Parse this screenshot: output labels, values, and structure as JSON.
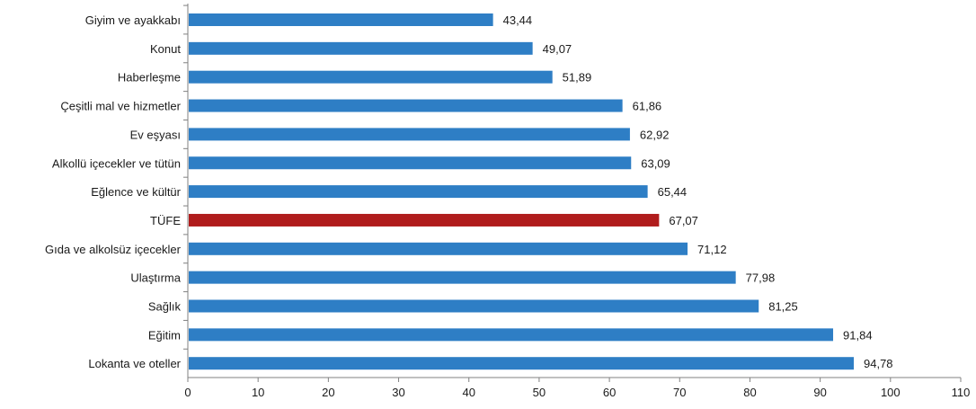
{
  "chart_data": {
    "type": "bar",
    "orientation": "horizontal",
    "title": "",
    "xlabel": "",
    "ylabel": "",
    "xlim": [
      0,
      110
    ],
    "ticks": [
      0,
      10,
      20,
      30,
      40,
      50,
      60,
      70,
      80,
      90,
      100,
      110
    ],
    "grid": false,
    "decimal_separator": ",",
    "colors": {
      "default": "#2e7ec5",
      "highlight": "#b01c1c",
      "axis": "#808080"
    },
    "categories": [
      "Giyim ve ayakkabı",
      "Konut",
      "Haberleşme",
      "Çeşitli mal ve hizmetler",
      "Ev eşyası",
      "Alkollü içecekler ve tütün",
      "Eğlence ve kültür",
      "TÜFE",
      "Gıda ve alkolsüz içecekler",
      "Ulaştırma",
      "Sağlık",
      "Eğitim",
      "Lokanta ve oteller"
    ],
    "values": [
      43.44,
      49.07,
      51.89,
      61.86,
      62.92,
      63.09,
      65.44,
      67.07,
      71.12,
      77.98,
      81.25,
      91.84,
      94.78
    ],
    "value_labels": [
      "43,44",
      "49,07",
      "51,89",
      "61,86",
      "62,92",
      "63,09",
      "65,44",
      "67,07",
      "71,12",
      "77,98",
      "81,25",
      "91,84",
      "94,78"
    ],
    "highlight_category": "TÜFE"
  }
}
